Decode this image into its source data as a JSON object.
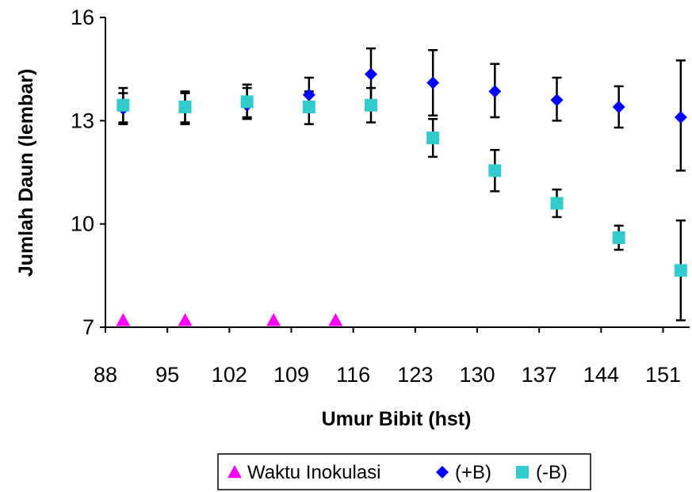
{
  "chart_data": {
    "type": "scatter",
    "xlabel": "Umur Bibit (hst)",
    "ylabel": "Jumlah Daun (lembar)",
    "xlim": [
      88,
      154
    ],
    "ylim": [
      7,
      16
    ],
    "xticks": [
      88,
      95,
      102,
      109,
      116,
      123,
      130,
      137,
      144,
      151
    ],
    "yticks": [
      7,
      10,
      13,
      16
    ],
    "grid": false,
    "legend_position": "bottom",
    "series": [
      {
        "name": "Waktu Inokulasi",
        "marker": "triangle",
        "color": "#FF00FF",
        "points": [
          {
            "x": 90,
            "y": 7.2
          },
          {
            "x": 97,
            "y": 7.2
          },
          {
            "x": 107,
            "y": 7.2
          },
          {
            "x": 114,
            "y": 7.2
          }
        ]
      },
      {
        "name": "(+B)",
        "marker": "diamond",
        "color": "#0000FF",
        "points": [
          {
            "x": 90,
            "y": 13.35,
            "err_low": 12.9,
            "err_high": 13.8
          },
          {
            "x": 97,
            "y": 13.4,
            "err_low": 12.95,
            "err_high": 13.85
          },
          {
            "x": 104,
            "y": 13.45,
            "err_low": 13.05,
            "err_high": 13.95
          },
          {
            "x": 111,
            "y": 13.75,
            "err_low": 13.25,
            "err_high": 14.25
          },
          {
            "x": 118,
            "y": 14.35,
            "err_low": 13.6,
            "err_high": 15.1
          },
          {
            "x": 125,
            "y": 14.1,
            "err_low": 13.15,
            "err_high": 15.05
          },
          {
            "x": 132,
            "y": 13.85,
            "err_low": 13.1,
            "err_high": 14.65
          },
          {
            "x": 139,
            "y": 13.6,
            "err_low": 13.0,
            "err_high": 14.25
          },
          {
            "x": 146,
            "y": 13.4,
            "err_low": 12.8,
            "err_high": 14.0
          },
          {
            "x": 153,
            "y": 13.1,
            "err_low": 11.55,
            "err_high": 14.75
          }
        ]
      },
      {
        "name": "(-B)",
        "marker": "square",
        "color": "#33CCCC",
        "points": [
          {
            "x": 90,
            "y": 13.45,
            "err_low": 12.95,
            "err_high": 13.95
          },
          {
            "x": 97,
            "y": 13.4,
            "err_low": 12.9,
            "err_high": 13.8
          },
          {
            "x": 104,
            "y": 13.55,
            "err_low": 13.1,
            "err_high": 14.05
          },
          {
            "x": 111,
            "y": 13.4,
            "err_low": 12.9,
            "err_high": 13.85
          },
          {
            "x": 118,
            "y": 13.45,
            "err_low": 12.95,
            "err_high": 13.95
          },
          {
            "x": 125,
            "y": 12.5,
            "err_low": 11.95,
            "err_high": 13.05
          },
          {
            "x": 132,
            "y": 11.55,
            "err_low": 10.95,
            "err_high": 12.15
          },
          {
            "x": 139,
            "y": 10.6,
            "err_low": 10.2,
            "err_high": 11.0
          },
          {
            "x": 146,
            "y": 9.6,
            "err_low": 9.25,
            "err_high": 9.95
          },
          {
            "x": 153,
            "y": 8.65,
            "err_low": 7.2,
            "err_high": 10.1
          }
        ]
      }
    ]
  }
}
